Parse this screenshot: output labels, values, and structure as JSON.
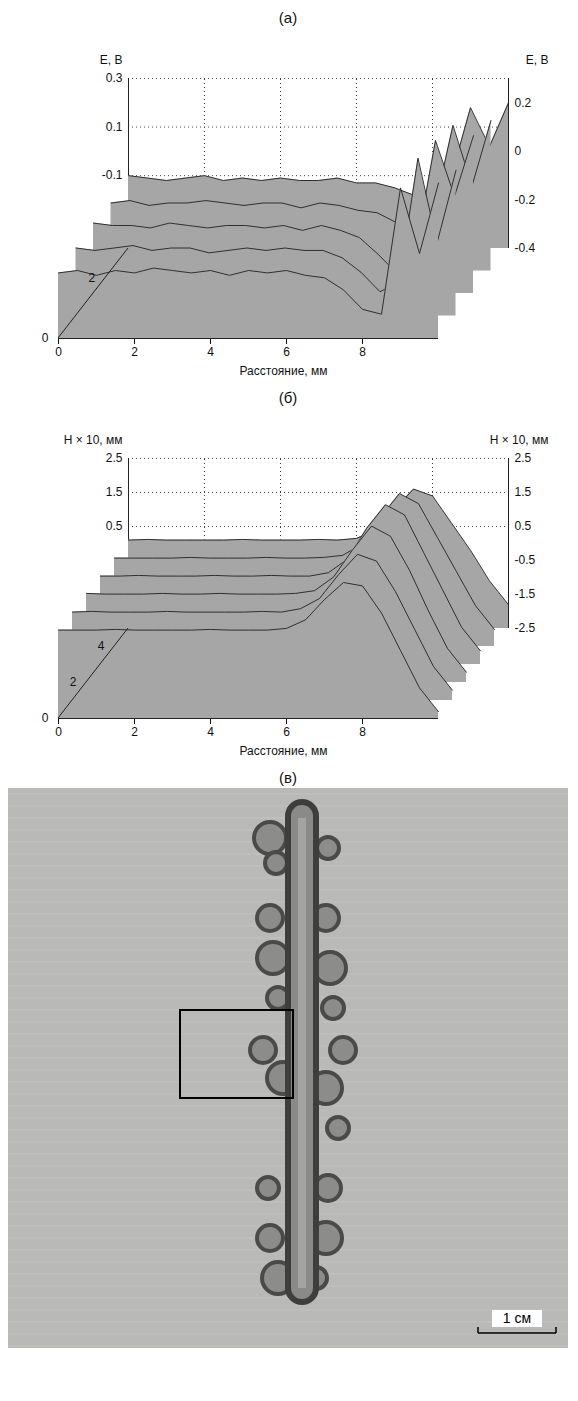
{
  "chart_data": [
    {
      "type": "surface",
      "title": "(а)",
      "x_label": "Расстояние, мм",
      "y_label": "E, В",
      "color": "#a6a6a6",
      "grid": true,
      "xlim": [
        0,
        10
      ],
      "xticks": [
        0,
        2,
        4,
        6,
        8
      ],
      "ylim": [
        -0.4,
        0.3
      ],
      "yticks": [
        -0.4,
        -0.2,
        0,
        0.2
      ],
      "yticks_back": [
        -0.1,
        0.1,
        0.3
      ],
      "zlim": [
        0,
        3
      ],
      "zticks": [
        0,
        2
      ],
      "x": [
        0,
        0.5,
        1,
        1.5,
        2,
        2.5,
        3,
        3.5,
        4,
        4.5,
        5,
        5.5,
        6,
        6.5,
        7,
        7.5,
        8,
        8.5,
        9,
        9.5,
        10
      ],
      "depths": [
        0,
        0.75,
        1.5,
        2.25,
        3
      ],
      "surface": [
        [
          -0.13,
          -0.12,
          -0.14,
          -0.12,
          -0.13,
          -0.11,
          -0.12,
          -0.13,
          -0.12,
          -0.14,
          -0.12,
          -0.13,
          -0.12,
          -0.14,
          -0.15,
          -0.2,
          -0.28,
          -0.3,
          0.22,
          -0.05,
          0.24
        ],
        [
          -0.12,
          -0.13,
          -0.12,
          -0.11,
          -0.13,
          -0.12,
          -0.12,
          -0.14,
          -0.13,
          -0.12,
          -0.13,
          -0.12,
          -0.13,
          -0.13,
          -0.16,
          -0.22,
          -0.3,
          -0.26,
          0.25,
          -0.1,
          0.2
        ],
        [
          -0.11,
          -0.12,
          -0.12,
          -0.13,
          -0.11,
          -0.12,
          -0.13,
          -0.12,
          -0.12,
          -0.13,
          -0.12,
          -0.14,
          -0.12,
          -0.14,
          -0.17,
          -0.24,
          -0.32,
          -0.2,
          0.23,
          0.0,
          0.25
        ],
        [
          -0.12,
          -0.11,
          -0.13,
          -0.12,
          -0.12,
          -0.11,
          -0.12,
          -0.13,
          -0.12,
          -0.12,
          -0.14,
          -0.12,
          -0.13,
          -0.15,
          -0.16,
          -0.2,
          -0.25,
          -0.15,
          0.2,
          -0.05,
          0.22
        ],
        [
          -0.1,
          -0.11,
          -0.12,
          -0.11,
          -0.1,
          -0.12,
          -0.11,
          -0.12,
          -0.11,
          -0.12,
          -0.12,
          -0.11,
          -0.13,
          -0.13,
          -0.15,
          -0.18,
          -0.2,
          -0.1,
          0.18,
          0.02,
          0.2
        ]
      ]
    },
    {
      "type": "surface",
      "title": "(б)",
      "x_label": "Расстояние, мм",
      "y_label": "H × 10, мм",
      "color": "#a6a6a6",
      "grid": true,
      "xlim": [
        0,
        10
      ],
      "xticks": [
        0,
        2,
        4,
        6,
        8
      ],
      "ylim": [
        -2.5,
        2.5
      ],
      "yticks": [
        -2.5,
        -1.5,
        -0.5,
        0.5,
        1.5,
        2.5
      ],
      "yticks_back": [
        0.5,
        1.5,
        2.5
      ],
      "zlim": [
        0,
        5
      ],
      "zticks": [
        0,
        2,
        4
      ],
      "x": [
        0,
        0.5,
        1,
        1.5,
        2,
        2.5,
        3,
        3.5,
        4,
        4.5,
        5,
        5.5,
        6,
        6.5,
        7,
        7.5,
        8,
        8.5,
        9,
        9.5,
        10
      ],
      "depths": [
        0,
        1,
        2,
        3,
        4,
        5
      ],
      "surface": [
        [
          0.1,
          0.1,
          0.1,
          0.12,
          0.1,
          0.1,
          0.1,
          0.1,
          0.12,
          0.1,
          0.1,
          0.1,
          0.15,
          0.4,
          1.0,
          1.5,
          1.4,
          0.6,
          -0.5,
          -1.6,
          -2.3
        ],
        [
          0.1,
          0.12,
          0.1,
          0.1,
          0.1,
          0.12,
          0.1,
          0.1,
          0.1,
          0.1,
          0.12,
          0.1,
          0.2,
          0.5,
          1.2,
          1.8,
          1.6,
          0.7,
          -0.4,
          -1.5,
          -2.2
        ],
        [
          0.12,
          0.1,
          0.1,
          0.1,
          0.12,
          0.1,
          0.1,
          0.12,
          0.1,
          0.1,
          0.1,
          0.12,
          0.2,
          0.6,
          1.4,
          2.1,
          1.8,
          0.8,
          -0.4,
          -1.5,
          -2.2
        ],
        [
          0.1,
          0.1,
          0.12,
          0.1,
          0.1,
          0.1,
          0.12,
          0.1,
          0.1,
          0.12,
          0.1,
          0.1,
          0.2,
          0.6,
          1.5,
          2.2,
          1.9,
          0.8,
          -0.3,
          -1.4,
          -2.1
        ],
        [
          0.1,
          0.1,
          0.1,
          0.1,
          0.12,
          0.1,
          0.1,
          0.1,
          0.12,
          0.1,
          0.1,
          0.12,
          0.18,
          0.5,
          1.3,
          2.0,
          1.7,
          0.7,
          -0.3,
          -1.3,
          -2.0
        ],
        [
          0.1,
          0.12,
          0.1,
          0.1,
          0.1,
          0.1,
          0.12,
          0.1,
          0.1,
          0.1,
          0.12,
          0.1,
          0.15,
          0.4,
          1.0,
          1.6,
          1.4,
          0.6,
          -0.2,
          -1.1,
          -1.8
        ]
      ]
    }
  ],
  "photo": {
    "title": "(в)",
    "scale_bar": "1 см"
  }
}
